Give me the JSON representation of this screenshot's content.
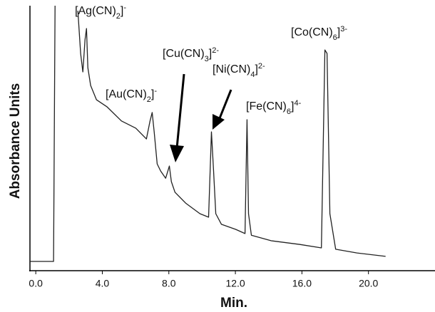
{
  "chart_data": {
    "type": "line",
    "x_label": "Min.",
    "y_label": "Absorbance Units",
    "xlim": [
      -0.35,
      24
    ],
    "ylim": [
      0,
      100
    ],
    "xticks": [
      {
        "value": 0,
        "label": "0.0"
      },
      {
        "value": 4,
        "label": "4.0"
      },
      {
        "value": 8,
        "label": "8.0"
      },
      {
        "value": 12,
        "label": "12.0"
      },
      {
        "value": 16,
        "label": "16.0"
      },
      {
        "value": 20,
        "label": "20.0"
      }
    ],
    "series": [
      {
        "color": "#222222",
        "x": [
          -0.34,
          1.07,
          1.16,
          1.17,
          2.53,
          2.7,
          2.83,
          2.96,
          3.05,
          3.13,
          3.3,
          3.65,
          4.29,
          5.15,
          6.01,
          6.65,
          6.87,
          7.0,
          7.12,
          7.3,
          7.51,
          7.81,
          8.03,
          8.15,
          8.37,
          9.01,
          9.87,
          10.39,
          10.56,
          10.69,
          10.82,
          11.16,
          12.02,
          12.58,
          12.7,
          12.79,
          12.96,
          14.16,
          15.88,
          17.17,
          17.38,
          17.51,
          17.68,
          18.03,
          19.31,
          21.03
        ],
        "values": [
          3.5,
          3.5,
          100,
          null,
          98.1,
          81.9,
          75.0,
          87.1,
          91.4,
          76.6,
          69.9,
          64.5,
          61.8,
          56.5,
          53.8,
          49.7,
          56.5,
          59.7,
          52.4,
          40.3,
          37.6,
          34.9,
          39.5,
          33.6,
          29.6,
          25.5,
          21.5,
          20.2,
          52.4,
          37.6,
          21.5,
          17.5,
          15.6,
          14.0,
          57.0,
          21.5,
          13.4,
          11.3,
          9.9,
          8.6,
          83.3,
          82.0,
          21.5,
          8.1,
          6.7,
          5.4
        ]
      }
    ],
    "annotations": [
      {
        "parts": [
          "[Ag(CN)",
          "2",
          "]",
          "-"
        ]
      },
      {
        "parts": [
          "[Cu(CN)",
          "3",
          "]",
          "2-"
        ]
      },
      {
        "parts": [
          "[Ni(CN)",
          "4",
          "]",
          "2-"
        ]
      },
      {
        "parts": [
          "[Au(CN)",
          "2",
          "]",
          "-"
        ]
      },
      {
        "parts": [
          "[Fe(CN)",
          "6",
          "]",
          "4-"
        ]
      },
      {
        "parts": [
          "[Co(CN)",
          "6",
          "]",
          "3-"
        ]
      }
    ]
  }
}
